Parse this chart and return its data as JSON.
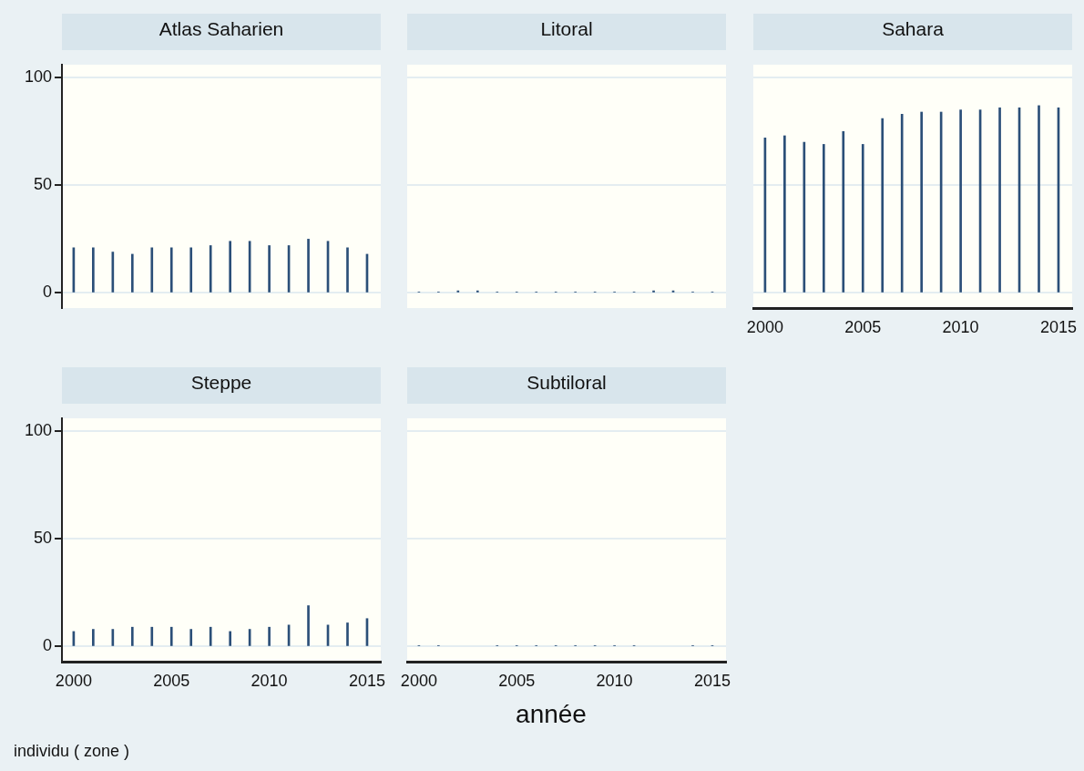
{
  "chart_data": [
    {
      "type": "bar",
      "title": "Atlas Saharien",
      "x": [
        2000,
        2001,
        2002,
        2003,
        2004,
        2005,
        2006,
        2007,
        2008,
        2009,
        2010,
        2011,
        2012,
        2013,
        2014,
        2015
      ],
      "values": [
        21,
        21,
        19,
        18,
        21,
        21,
        21,
        22,
        24,
        24,
        22,
        22,
        25,
        24,
        21,
        18
      ],
      "color": "#2b4f78",
      "xlim": [
        1999.4,
        2015.7
      ],
      "ylim": [
        -7,
        106
      ],
      "yticks": [
        0,
        50,
        100
      ],
      "xticks": [
        2000,
        2005,
        2010,
        2015
      ],
      "grid": "y",
      "legend": false,
      "tick_labels": "y"
    },
    {
      "type": "bar",
      "title": "Litoral",
      "x": [
        2000,
        2001,
        2002,
        2003,
        2004,
        2005,
        2006,
        2007,
        2008,
        2009,
        2010,
        2011,
        2012,
        2013,
        2014,
        2015
      ],
      "values": [
        0.5,
        0.5,
        1,
        1,
        0.5,
        0.5,
        0.5,
        0.5,
        0.5,
        0.5,
        0.5,
        0.5,
        1,
        1,
        0.5,
        0.5
      ],
      "color": "#2b4f78",
      "xlim": [
        1999.4,
        2015.7
      ],
      "ylim": [
        -7,
        106
      ],
      "yticks": [
        0,
        50,
        100
      ],
      "xticks": [
        2000,
        2005,
        2010,
        2015
      ],
      "grid": "y",
      "legend": false,
      "tick_labels": false
    },
    {
      "type": "bar",
      "title": "Sahara",
      "x": [
        2000,
        2001,
        2002,
        2003,
        2004,
        2005,
        2006,
        2007,
        2008,
        2009,
        2010,
        2011,
        2012,
        2013,
        2014,
        2015
      ],
      "values": [
        72,
        73,
        70,
        69,
        75,
        69,
        81,
        83,
        84,
        84,
        85,
        85,
        86,
        86,
        87,
        86
      ],
      "color": "#2b4f78",
      "xlim": [
        1999.4,
        2015.7
      ],
      "ylim": [
        -7,
        106
      ],
      "yticks": [
        0,
        50,
        100
      ],
      "xticks": [
        2000,
        2005,
        2010,
        2015
      ],
      "grid": "y",
      "legend": false,
      "tick_labels": "x"
    },
    {
      "type": "bar",
      "title": "Steppe",
      "x": [
        2000,
        2001,
        2002,
        2003,
        2004,
        2005,
        2006,
        2007,
        2008,
        2009,
        2010,
        2011,
        2012,
        2013,
        2014,
        2015
      ],
      "values": [
        7,
        8,
        8,
        9,
        9,
        9,
        8,
        9,
        7,
        8,
        9,
        10,
        19,
        10,
        11,
        13
      ],
      "color": "#2b4f78",
      "xlim": [
        1999.4,
        2015.7
      ],
      "ylim": [
        -7,
        106
      ],
      "yticks": [
        0,
        50,
        100
      ],
      "xticks": [
        2000,
        2005,
        2010,
        2015
      ],
      "grid": "y",
      "legend": false
    },
    {
      "type": "bar",
      "title": "Subtiloral",
      "x": [
        2000,
        2001,
        2002,
        2003,
        2004,
        2005,
        2006,
        2007,
        2008,
        2009,
        2010,
        2011,
        2012,
        2013,
        2014,
        2015
      ],
      "values": [
        0.5,
        0.5,
        null,
        null,
        0.5,
        0.5,
        0.5,
        0.5,
        0.5,
        0.5,
        0.5,
        0.5,
        null,
        null,
        0.5,
        0.5
      ],
      "color": "#2b4f78",
      "xlim": [
        1999.4,
        2015.7
      ],
      "ylim": [
        -7,
        106
      ],
      "yticks": [
        0,
        50,
        100
      ],
      "xticks": [
        2000,
        2005,
        2010,
        2015
      ],
      "grid": "y",
      "legend": false,
      "tick_labels": "x",
      "xlabel": "année",
      "annotations": [
        "individu ( zone )"
      ]
    }
  ]
}
